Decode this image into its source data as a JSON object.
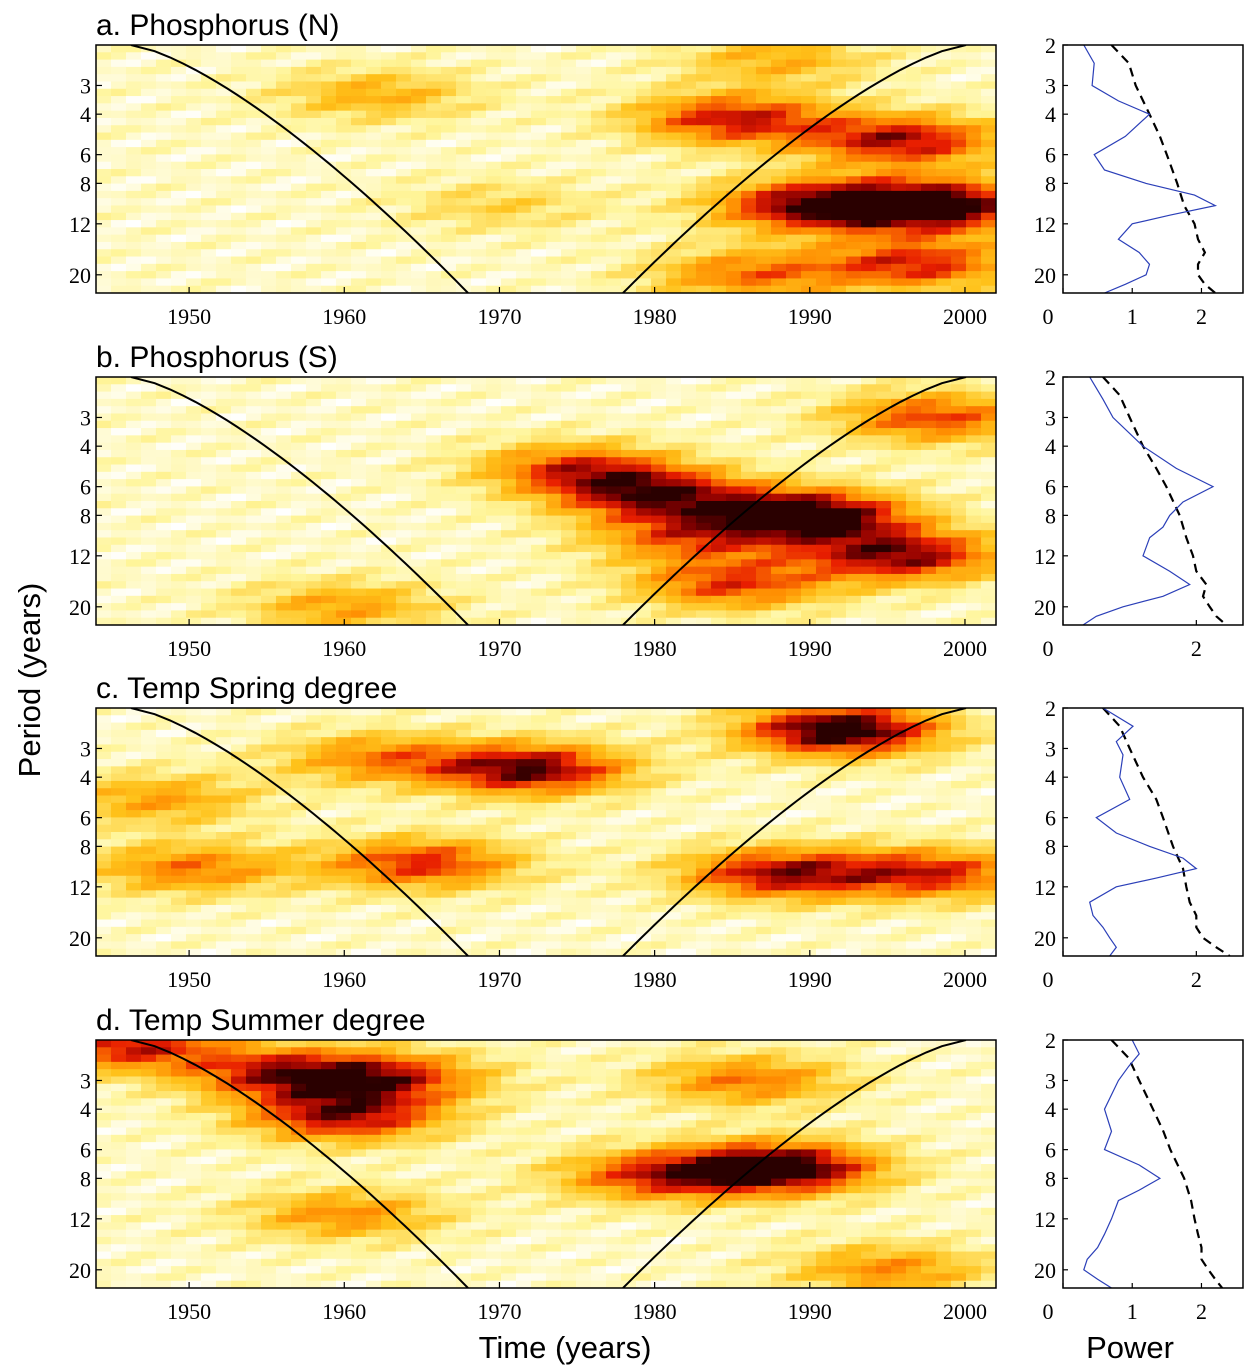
{
  "figure": {
    "ylabel": "Period (years)",
    "xlabel": "Time (years)",
    "power_label": "Power"
  },
  "colors": {
    "low": "#ffffff",
    "mid_low": "#fff59a",
    "mid": "#ffc21a",
    "mid_high": "#ff8a00",
    "high": "#e81e00",
    "very_high": "#8b0000",
    "max": "#2a0000",
    "spectrum_line": "#2b3fb8",
    "significance_line": "#000000"
  },
  "chart_data": [
    {
      "type": "heatmap",
      "title": "a. Phosphorus (N)",
      "x_ticks": [
        1950,
        1960,
        1970,
        1980,
        1990,
        2000
      ],
      "y_ticks": [
        3,
        4,
        6,
        8,
        12,
        20
      ],
      "xlim": [
        1944,
        2002
      ],
      "ylim": [
        2,
        24
      ],
      "y_scale": "log",
      "hotspots": [
        {
          "x": 1998,
          "period": 10,
          "power": 1.0
        },
        {
          "x": 1990,
          "period": 10,
          "power": 0.8
        },
        {
          "x": 1985,
          "period": 4.2,
          "power": 0.7
        },
        {
          "x": 1996,
          "period": 5.2,
          "power": 0.75
        },
        {
          "x": 1997,
          "period": 18,
          "power": 0.65
        },
        {
          "x": 1986,
          "period": 20,
          "power": 0.5
        },
        {
          "x": 1962,
          "period": 3.3,
          "power": 0.35
        },
        {
          "x": 1988,
          "period": 2.3,
          "power": 0.35
        },
        {
          "x": 1970,
          "period": 10,
          "power": 0.22
        }
      ],
      "global_spectrum": {
        "x_ticks": [
          0,
          1,
          2
        ],
        "xlim": [
          0,
          2.6
        ],
        "power": {
          "period": [
            2,
            2.4,
            3,
            3.5,
            4,
            5,
            6,
            7,
            8,
            9,
            10,
            11,
            12,
            14,
            16,
            18,
            20,
            22,
            24
          ],
          "value": [
            0.3,
            0.45,
            0.42,
            0.8,
            1.25,
            0.9,
            0.45,
            0.6,
            1.2,
            1.9,
            2.2,
            1.55,
            1.0,
            0.8,
            1.1,
            1.25,
            1.2,
            0.9,
            0.6
          ]
        },
        "significance": {
          "period": [
            2,
            2.4,
            3,
            4,
            5,
            6,
            8,
            10,
            12,
            14,
            16,
            18,
            20,
            22,
            24
          ],
          "value": [
            0.7,
            0.95,
            1.05,
            1.25,
            1.4,
            1.5,
            1.65,
            1.75,
            1.9,
            1.95,
            2.05,
            1.95,
            1.95,
            2.05,
            2.2
          ]
        }
      }
    },
    {
      "type": "heatmap",
      "title": "b. Phosphorus (S)",
      "x_ticks": [
        1950,
        1960,
        1970,
        1980,
        1990,
        2000
      ],
      "y_ticks": [
        3,
        4,
        6,
        8,
        12,
        20
      ],
      "xlim": [
        1944,
        2002
      ],
      "ylim": [
        2,
        24
      ],
      "y_scale": "log",
      "hotspots": [
        {
          "x": 1990,
          "period": 8,
          "power": 1.0
        },
        {
          "x": 1980,
          "period": 6.5,
          "power": 0.75
        },
        {
          "x": 1996,
          "period": 12,
          "power": 0.8
        },
        {
          "x": 1975,
          "period": 5,
          "power": 0.6
        },
        {
          "x": 1985,
          "period": 16,
          "power": 0.6
        },
        {
          "x": 1998,
          "period": 3,
          "power": 0.6
        },
        {
          "x": 1960,
          "period": 20,
          "power": 0.4
        },
        {
          "x": 1982,
          "period": 10,
          "power": 0.5
        }
      ],
      "global_spectrum": {
        "x_ticks": [
          0,
          2
        ],
        "xlim": [
          0,
          2.7
        ],
        "power": {
          "period": [
            2,
            2.5,
            3,
            4,
            5,
            6,
            7,
            8,
            9,
            10,
            12,
            14,
            16,
            18,
            20,
            22,
            24
          ],
          "value": [
            0.4,
            0.6,
            0.75,
            1.2,
            1.7,
            2.25,
            1.8,
            1.6,
            1.5,
            1.3,
            1.2,
            1.6,
            1.9,
            1.5,
            0.9,
            0.5,
            0.3
          ]
        },
        "significance": {
          "period": [
            2,
            2.4,
            3,
            4,
            5,
            6,
            8,
            10,
            12,
            14,
            16,
            18,
            20,
            22,
            24
          ],
          "value": [
            0.6,
            0.85,
            1.0,
            1.2,
            1.4,
            1.55,
            1.75,
            1.85,
            1.95,
            2.0,
            2.15,
            2.1,
            2.2,
            2.3,
            2.45
          ]
        }
      }
    },
    {
      "type": "heatmap",
      "title": "c. Temp Spring degree",
      "x_ticks": [
        1950,
        1960,
        1970,
        1980,
        1990,
        2000
      ],
      "y_ticks": [
        3,
        4,
        6,
        8,
        12,
        20
      ],
      "xlim": [
        1944,
        2002
      ],
      "ylim": [
        2,
        24
      ],
      "y_scale": "log",
      "hotspots": [
        {
          "x": 1992,
          "period": 2.5,
          "power": 1.0
        },
        {
          "x": 1972,
          "period": 3.7,
          "power": 0.85
        },
        {
          "x": 1988,
          "period": 10.5,
          "power": 0.75
        },
        {
          "x": 1965,
          "period": 9.5,
          "power": 0.65
        },
        {
          "x": 1998,
          "period": 10.5,
          "power": 0.65
        },
        {
          "x": 1950,
          "period": 10,
          "power": 0.5
        },
        {
          "x": 1962,
          "period": 3.3,
          "power": 0.45
        },
        {
          "x": 1948,
          "period": 5,
          "power": 0.4
        }
      ],
      "global_spectrum": {
        "x_ticks": [
          0,
          2
        ],
        "xlim": [
          0,
          2.7
        ],
        "power": {
          "period": [
            2,
            2.4,
            2.8,
            3.2,
            4,
            5,
            6,
            7,
            8,
            9,
            10,
            11,
            12,
            14,
            16,
            18,
            20,
            22,
            24
          ],
          "value": [
            0.6,
            1.05,
            0.8,
            0.9,
            0.85,
            1.0,
            0.5,
            0.8,
            1.3,
            1.8,
            2.0,
            1.4,
            0.8,
            0.4,
            0.45,
            0.6,
            0.7,
            0.8,
            0.7
          ]
        },
        "significance": {
          "period": [
            2,
            2.4,
            3,
            4,
            5,
            6,
            8,
            10,
            12,
            14,
            16,
            18,
            20,
            22,
            24
          ],
          "value": [
            0.6,
            0.85,
            1.0,
            1.2,
            1.4,
            1.5,
            1.65,
            1.8,
            1.85,
            1.9,
            2.0,
            2.0,
            2.1,
            2.3,
            2.5
          ]
        }
      }
    },
    {
      "type": "heatmap",
      "title": "d. Temp Summer degree",
      "x_ticks": [
        1950,
        1960,
        1970,
        1980,
        1990,
        2000
      ],
      "y_ticks": [
        3,
        4,
        6,
        8,
        12,
        20
      ],
      "xlim": [
        1944,
        2002
      ],
      "ylim": [
        2,
        24
      ],
      "y_scale": "log",
      "hotspots": [
        {
          "x": 1988,
          "period": 7.2,
          "power": 1.0
        },
        {
          "x": 1980,
          "period": 7.8,
          "power": 0.6
        },
        {
          "x": 1960,
          "period": 4.3,
          "power": 0.75
        },
        {
          "x": 1956,
          "period": 2.8,
          "power": 0.65
        },
        {
          "x": 1946,
          "period": 2.1,
          "power": 0.7
        },
        {
          "x": 1963,
          "period": 2.9,
          "power": 0.6
        },
        {
          "x": 1986,
          "period": 3.0,
          "power": 0.5
        },
        {
          "x": 1995,
          "period": 20,
          "power": 0.45
        },
        {
          "x": 1960,
          "period": 11.5,
          "power": 0.45
        }
      ],
      "global_spectrum": {
        "x_ticks": [
          0,
          1,
          2
        ],
        "xlim": [
          0,
          2.6
        ],
        "power": {
          "period": [
            2,
            2.3,
            2.6,
            3,
            4,
            5,
            6,
            7,
            8,
            9,
            10,
            12,
            14,
            16,
            18,
            20,
            22,
            24
          ],
          "value": [
            1.0,
            1.1,
            0.95,
            0.8,
            0.6,
            0.7,
            0.6,
            1.1,
            1.4,
            1.1,
            0.8,
            0.7,
            0.6,
            0.5,
            0.35,
            0.3,
            0.5,
            0.7
          ]
        },
        "significance": {
          "period": [
            2,
            2.4,
            3,
            4,
            5,
            6,
            8,
            10,
            12,
            14,
            16,
            18,
            20,
            22,
            24
          ],
          "value": [
            0.7,
            0.95,
            1.1,
            1.3,
            1.45,
            1.55,
            1.75,
            1.85,
            1.9,
            1.95,
            2.0,
            2.0,
            2.1,
            2.2,
            2.3
          ]
        }
      }
    }
  ]
}
